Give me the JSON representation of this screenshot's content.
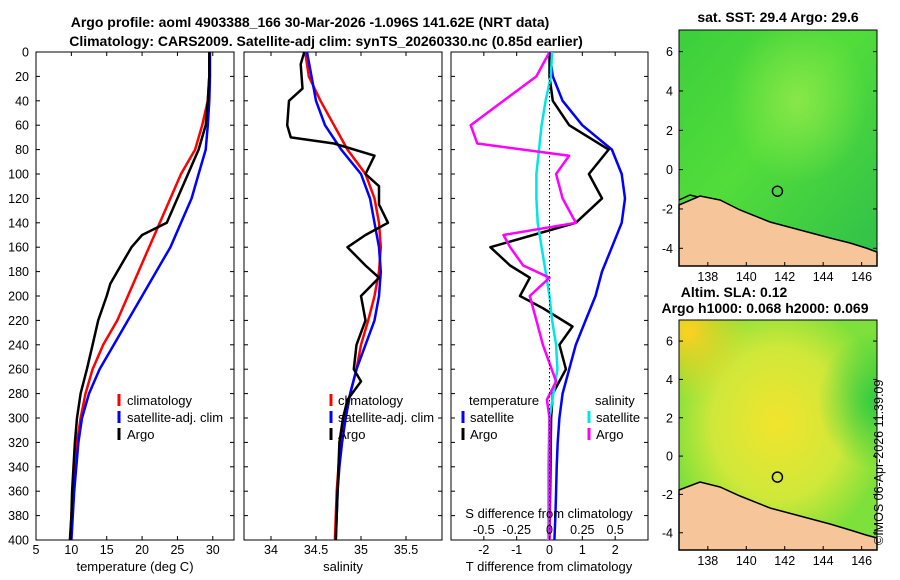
{
  "title_line1": "Argo profile: aoml 4903388_166 30-Mar-2026 -1.096S 141.62E (NRT data)",
  "title_line2": "Climatology: CARS2009. Satellite-adj clim: synTS_20260330.nc (0.85d earlier)",
  "credit": "©IMOS 06-Apr-2026 11:39:09",
  "colors": {
    "climatology": "#ff0000",
    "satellite": "#0000ff",
    "argo": "#000000",
    "sal_diff": "#ff00ff",
    "sal_sat": "#00e5e5"
  },
  "depth_ticks": [
    "0",
    "20",
    "40",
    "60",
    "80",
    "100",
    "120",
    "140",
    "160",
    "180",
    "200",
    "220",
    "240",
    "260",
    "280",
    "300",
    "320",
    "340",
    "360",
    "380",
    "400"
  ],
  "depth_range": [
    0,
    400
  ],
  "chart_data": [
    {
      "type": "line",
      "name": "temperature",
      "xlabel": "temperature (deg C)",
      "xlim": [
        5,
        33
      ],
      "xticks": [
        "5",
        "10",
        "15",
        "20",
        "25",
        "30"
      ],
      "xtick_values": [
        5,
        10,
        15,
        20,
        25,
        30
      ],
      "legend": [
        "climatology",
        "satellite-adj. clim",
        "Argo"
      ],
      "series": [
        {
          "name": "climatology",
          "color_key": "climatology",
          "points": [
            [
              29.5,
              0
            ],
            [
              29.5,
              20
            ],
            [
              29.3,
              40
            ],
            [
              28.5,
              60
            ],
            [
              27.5,
              80
            ],
            [
              25.5,
              100
            ],
            [
              24,
              120
            ],
            [
              22.5,
              140
            ],
            [
              21,
              160
            ],
            [
              19.5,
              180
            ],
            [
              18,
              200
            ],
            [
              16.5,
              220
            ],
            [
              14.5,
              240
            ],
            [
              13,
              260
            ],
            [
              12,
              280
            ],
            [
              11.3,
              300
            ],
            [
              10.8,
              320
            ],
            [
              10.5,
              340
            ],
            [
              10.2,
              360
            ],
            [
              10,
              380
            ],
            [
              9.9,
              400
            ]
          ]
        },
        {
          "name": "satellite-adj. clim",
          "color_key": "satellite",
          "points": [
            [
              29.6,
              0
            ],
            [
              29.6,
              20
            ],
            [
              29.5,
              40
            ],
            [
              29.3,
              60
            ],
            [
              29,
              80
            ],
            [
              28,
              100
            ],
            [
              27,
              120
            ],
            [
              25.5,
              140
            ],
            [
              24,
              160
            ],
            [
              22,
              180
            ],
            [
              20,
              200
            ],
            [
              18,
              220
            ],
            [
              16,
              240
            ],
            [
              14,
              260
            ],
            [
              12.5,
              280
            ],
            [
              11.5,
              300
            ],
            [
              11,
              320
            ],
            [
              10.7,
              340
            ],
            [
              10.4,
              360
            ],
            [
              10.2,
              380
            ],
            [
              10,
              400
            ]
          ]
        },
        {
          "name": "Argo",
          "color_key": "argo",
          "points": [
            [
              29.5,
              0
            ],
            [
              29.5,
              20
            ],
            [
              29.3,
              40
            ],
            [
              29,
              60
            ],
            [
              28,
              80
            ],
            [
              26.5,
              100
            ],
            [
              25,
              120
            ],
            [
              23.5,
              140
            ],
            [
              20,
              150
            ],
            [
              18.5,
              160
            ],
            [
              17.5,
              170
            ],
            [
              16.5,
              180
            ],
            [
              15.5,
              190
            ],
            [
              15,
              200
            ],
            [
              13.8,
              220
            ],
            [
              13,
              240
            ],
            [
              12.2,
              260
            ],
            [
              11.3,
              280
            ],
            [
              10.8,
              300
            ],
            [
              10.5,
              320
            ],
            [
              10.3,
              340
            ],
            [
              10.1,
              360
            ],
            [
              10,
              380
            ],
            [
              9.8,
              400
            ]
          ]
        }
      ]
    },
    {
      "type": "line",
      "name": "salinity",
      "xlabel": "salinity",
      "xlim": [
        33.7,
        35.9
      ],
      "xticks": [
        "34",
        "34.5",
        "35",
        "35.5"
      ],
      "xtick_values": [
        34,
        34.5,
        35,
        35.5
      ],
      "legend": [
        "climatology",
        "satellite-adj. clim",
        "Argo"
      ],
      "series": [
        {
          "name": "climatology",
          "color_key": "climatology",
          "points": [
            [
              34.38,
              0
            ],
            [
              34.42,
              20
            ],
            [
              34.55,
              40
            ],
            [
              34.7,
              60
            ],
            [
              34.85,
              80
            ],
            [
              35.05,
              100
            ],
            [
              35.15,
              120
            ],
            [
              35.2,
              140
            ],
            [
              35.22,
              160
            ],
            [
              35.2,
              180
            ],
            [
              35.15,
              200
            ],
            [
              35.08,
              220
            ],
            [
              35,
              240
            ],
            [
              34.95,
              260
            ],
            [
              34.88,
              280
            ],
            [
              34.82,
              300
            ],
            [
              34.78,
              320
            ],
            [
              34.75,
              340
            ],
            [
              34.73,
              360
            ],
            [
              34.72,
              380
            ],
            [
              34.71,
              400
            ]
          ]
        },
        {
          "name": "satellite-adj. clim",
          "color_key": "satellite",
          "points": [
            [
              34.4,
              0
            ],
            [
              34.45,
              20
            ],
            [
              34.5,
              40
            ],
            [
              34.6,
              60
            ],
            [
              34.78,
              80
            ],
            [
              35.0,
              100
            ],
            [
              35.1,
              120
            ],
            [
              35.15,
              140
            ],
            [
              35.2,
              160
            ],
            [
              35.22,
              180
            ],
            [
              35.2,
              200
            ],
            [
              35.15,
              220
            ],
            [
              35.05,
              240
            ],
            [
              34.95,
              260
            ],
            [
              34.88,
              280
            ],
            [
              34.83,
              300
            ],
            [
              34.79,
              320
            ],
            [
              34.76,
              340
            ],
            [
              34.74,
              360
            ],
            [
              34.73,
              380
            ],
            [
              34.72,
              400
            ]
          ]
        },
        {
          "name": "Argo",
          "color_key": "argo",
          "points": [
            [
              34.37,
              0
            ],
            [
              34.33,
              10
            ],
            [
              34.35,
              30
            ],
            [
              34.2,
              40
            ],
            [
              34.18,
              60
            ],
            [
              34.22,
              70
            ],
            [
              34.7,
              75
            ],
            [
              35.15,
              85
            ],
            [
              35.05,
              100
            ],
            [
              35.2,
              110
            ],
            [
              35.2,
              125
            ],
            [
              35.3,
              140
            ],
            [
              35.05,
              150
            ],
            [
              34.85,
              160
            ],
            [
              35.05,
              175
            ],
            [
              35.2,
              185
            ],
            [
              35.0,
              200
            ],
            [
              35.05,
              220
            ],
            [
              34.95,
              240
            ],
            [
              34.92,
              260
            ],
            [
              35.0,
              270
            ],
            [
              34.85,
              285
            ],
            [
              34.8,
              300
            ],
            [
              34.76,
              320
            ],
            [
              34.75,
              340
            ],
            [
              34.74,
              360
            ],
            [
              34.73,
              380
            ],
            [
              34.72,
              400
            ]
          ]
        }
      ]
    },
    {
      "type": "line",
      "name": "difference",
      "xlabel": "T difference from climatology",
      "xlabel_top": "S difference from climatology",
      "xlim": [
        -3,
        3
      ],
      "xticks": [
        "-2",
        "-1",
        "0",
        "1",
        "2"
      ],
      "xtick_values": [
        -2,
        -1,
        0,
        1,
        2
      ],
      "sticks": [
        "-0.5",
        "-0.25",
        "0",
        "0.25",
        "0.5"
      ],
      "stick_values": [
        -0.5,
        -0.25,
        0,
        0.25,
        0.5
      ],
      "legend_t_title": "temperature",
      "legend_s_title": "salinity",
      "legend_t": [
        "satellite",
        "Argo"
      ],
      "legend_s": [
        "satellite",
        "Argo"
      ],
      "series": [
        {
          "name": "T satellite",
          "color_key": "satellite",
          "points": [
            [
              0,
              0
            ],
            [
              0.1,
              20
            ],
            [
              0.4,
              40
            ],
            [
              1,
              60
            ],
            [
              1.9,
              80
            ],
            [
              2.2,
              100
            ],
            [
              2.3,
              120
            ],
            [
              2.2,
              140
            ],
            [
              1.9,
              160
            ],
            [
              1.6,
              180
            ],
            [
              1.4,
              200
            ],
            [
              1.1,
              220
            ],
            [
              0.8,
              240
            ],
            [
              0.6,
              260
            ],
            [
              0.4,
              280
            ],
            [
              0.3,
              300
            ],
            [
              0.25,
              320
            ],
            [
              0.22,
              340
            ],
            [
              0.2,
              360
            ],
            [
              0.18,
              380
            ],
            [
              0.15,
              400
            ]
          ]
        },
        {
          "name": "T Argo",
          "color_key": "argo",
          "points": [
            [
              0,
              0
            ],
            [
              0,
              20
            ],
            [
              0.1,
              40
            ],
            [
              0.6,
              60
            ],
            [
              1.8,
              80
            ],
            [
              1.2,
              100
            ],
            [
              1.6,
              120
            ],
            [
              0.8,
              140
            ],
            [
              -0.5,
              150
            ],
            [
              -1.8,
              160
            ],
            [
              -1.2,
              175
            ],
            [
              -0.6,
              185
            ],
            [
              -0.9,
              200
            ],
            [
              -0.2,
              210
            ],
            [
              0.7,
              225
            ],
            [
              0.3,
              240
            ],
            [
              0.5,
              260
            ],
            [
              0.1,
              280
            ],
            [
              0.05,
              300
            ],
            [
              0.03,
              340
            ],
            [
              0,
              400
            ]
          ]
        },
        {
          "name": "S satellite",
          "color_key": "sal_sat",
          "points": [
            [
              0.02,
              0
            ],
            [
              0.01,
              20
            ],
            [
              -0.03,
              40
            ],
            [
              -0.06,
              60
            ],
            [
              -0.08,
              80
            ],
            [
              -0.1,
              100
            ],
            [
              -0.1,
              120
            ],
            [
              -0.09,
              140
            ],
            [
              -0.06,
              160
            ],
            [
              -0.03,
              180
            ],
            [
              0,
              200
            ],
            [
              0.02,
              220
            ],
            [
              0.05,
              240
            ],
            [
              0.06,
              260
            ],
            [
              0.03,
              280
            ],
            [
              0,
              300
            ],
            [
              -0.01,
              340
            ],
            [
              -0.01,
              400
            ]
          ]
        },
        {
          "name": "S Argo",
          "color_key": "sal_diff",
          "points": [
            [
              0,
              0
            ],
            [
              -0.1,
              20
            ],
            [
              -0.35,
              40
            ],
            [
              -0.6,
              60
            ],
            [
              -0.55,
              75
            ],
            [
              0.15,
              85
            ],
            [
              0.05,
              100
            ],
            [
              0.1,
              120
            ],
            [
              0.2,
              140
            ],
            [
              -0.35,
              150
            ],
            [
              -0.3,
              160
            ],
            [
              -0.2,
              175
            ],
            [
              0,
              185
            ],
            [
              -0.15,
              200
            ],
            [
              -0.1,
              220
            ],
            [
              -0.05,
              240
            ],
            [
              0.05,
              270
            ],
            [
              -0.02,
              285
            ],
            [
              0,
              300
            ],
            [
              0,
              340
            ],
            [
              0,
              400
            ]
          ]
        }
      ]
    },
    {
      "type": "heatmap",
      "name": "sst_map",
      "title": "sat. SST: 29.4 Argo: 29.6",
      "xlim": [
        136.5,
        146.8
      ],
      "ylim": [
        -4.9,
        7.1
      ],
      "xticks": [
        "138",
        "140",
        "142",
        "144",
        "146"
      ],
      "xtick_values": [
        138,
        140,
        142,
        144,
        146
      ],
      "yticks": [
        "6",
        "4",
        "2",
        "0",
        "-2",
        "-4"
      ],
      "ytick_values": [
        6,
        4,
        2,
        0,
        -2,
        -4
      ],
      "float_position": [
        141.62,
        -1.096
      ]
    },
    {
      "type": "heatmap",
      "name": "sla_map",
      "title": "Altim. SLA: 0.12",
      "title2": "Argo h1000: 0.068 h2000: 0.069",
      "xlim": [
        136.5,
        146.8
      ],
      "ylim": [
        -4.9,
        7.1
      ],
      "xticks": [
        "138",
        "140",
        "142",
        "144",
        "146"
      ],
      "xtick_values": [
        138,
        140,
        142,
        144,
        146
      ],
      "yticks": [
        "6",
        "4",
        "2",
        "0",
        "-2",
        "-4"
      ],
      "ytick_values": [
        6,
        4,
        2,
        0,
        -2,
        -4
      ],
      "float_position": [
        141.62,
        -1.096
      ]
    }
  ]
}
